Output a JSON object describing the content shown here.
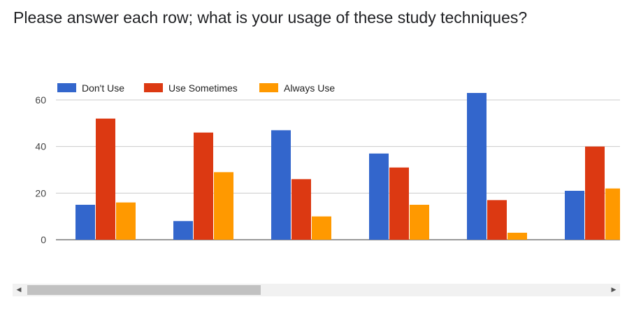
{
  "title": "Please answer each row; what is your usage of these study techniques?",
  "chart_data": {
    "type": "bar",
    "title": "Please answer each row; what is your usage of these study techniques?",
    "xlabel": "",
    "ylabel": "",
    "ylim": [
      0,
      60
    ],
    "yticks": [
      0,
      20,
      40,
      60
    ],
    "grid": true,
    "legend_position": "top-left",
    "categories": [
      "",
      "",
      "",
      "",
      "",
      ""
    ],
    "series": [
      {
        "name": "Don't Use",
        "color": "#3366cc",
        "values": [
          15,
          8,
          47,
          37,
          63,
          21
        ]
      },
      {
        "name": "Use Sometimes",
        "color": "#dc3912",
        "values": [
          52,
          46,
          26,
          31,
          17,
          40
        ]
      },
      {
        "name": "Always Use",
        "color": "#ff9900",
        "values": [
          16,
          29,
          10,
          15,
          3,
          22
        ]
      }
    ]
  },
  "scrollbar": {
    "left_arrow": "◀",
    "right_arrow": "▶",
    "position": 0.38
  }
}
